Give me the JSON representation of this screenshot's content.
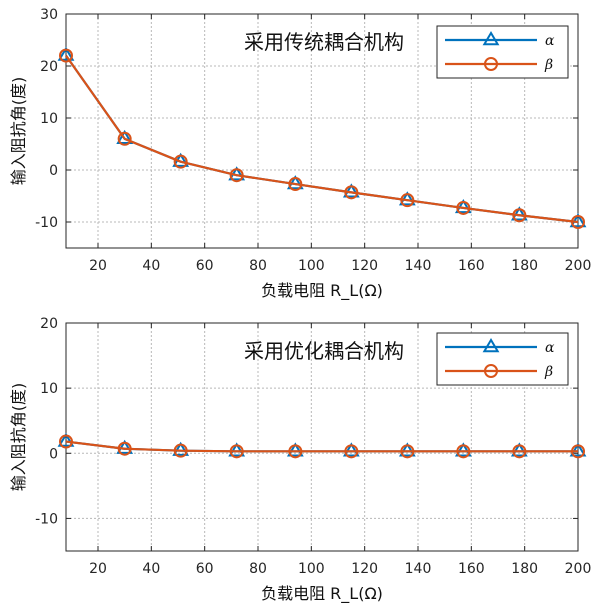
{
  "chart_data": [
    {
      "type": "line",
      "title": "采用传统耦合机构",
      "xlabel": "负载电阻 R_L(Ω)",
      "ylabel": "输入阻抗角(度)",
      "xlim": [
        8,
        200
      ],
      "ylim": [
        -15,
        30
      ],
      "xticks": [
        20,
        40,
        60,
        80,
        100,
        120,
        140,
        160,
        180,
        200
      ],
      "yticks": [
        -10,
        0,
        10,
        20,
        30
      ],
      "grid": true,
      "legend_position": "top-right",
      "x": [
        8,
        30,
        51,
        72,
        94,
        115,
        136,
        157,
        178,
        200
      ],
      "series": [
        {
          "name": "α",
          "color": "#0072BD",
          "marker": "triangle",
          "values": [
            22,
            6,
            1.6,
            -1,
            -2.7,
            -4.3,
            -5.8,
            -7.3,
            -8.7,
            -10
          ]
        },
        {
          "name": "β",
          "color": "#D95319",
          "marker": "circle",
          "values": [
            22,
            6,
            1.6,
            -1,
            -2.7,
            -4.3,
            -5.8,
            -7.3,
            -8.7,
            -10
          ]
        }
      ]
    },
    {
      "type": "line",
      "title": "采用优化耦合机构",
      "xlabel": "负载电阻 R_L(Ω)",
      "ylabel": "输入阻抗角(度)",
      "xlim": [
        8,
        200
      ],
      "ylim": [
        -15,
        20
      ],
      "xticks": [
        20,
        40,
        60,
        80,
        100,
        120,
        140,
        160,
        180,
        200
      ],
      "yticks": [
        -10,
        0,
        10,
        20
      ],
      "grid": true,
      "legend_position": "top-right",
      "x": [
        8,
        30,
        51,
        72,
        94,
        115,
        136,
        157,
        178,
        200
      ],
      "series": [
        {
          "name": "α",
          "color": "#0072BD",
          "marker": "triangle",
          "values": [
            1.8,
            0.7,
            0.4,
            0.3,
            0.3,
            0.3,
            0.3,
            0.3,
            0.3,
            0.3
          ]
        },
        {
          "name": "β",
          "color": "#D95319",
          "marker": "circle",
          "values": [
            1.8,
            0.7,
            0.4,
            0.3,
            0.3,
            0.3,
            0.3,
            0.3,
            0.3,
            0.3
          ]
        }
      ]
    }
  ]
}
